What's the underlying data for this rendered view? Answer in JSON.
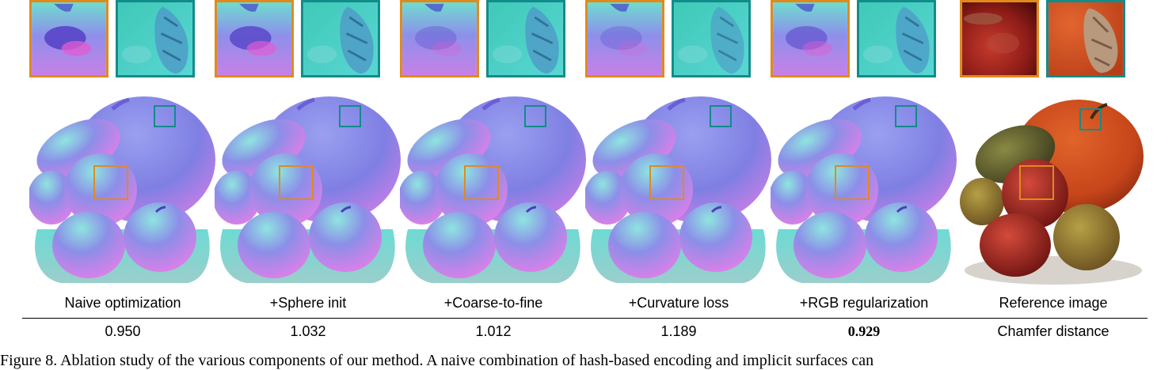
{
  "figure": {
    "columns": [
      {
        "label": "Naive optimization",
        "value": "0.950",
        "bold": false,
        "kind": "normal"
      },
      {
        "label": "+Sphere init",
        "value": "1.032",
        "bold": false,
        "kind": "normal"
      },
      {
        "label": "+Coarse-to-fine",
        "value": "1.012",
        "bold": false,
        "kind": "normal"
      },
      {
        "label": "+Curvature loss",
        "value": "1.189",
        "bold": false,
        "kind": "normal"
      },
      {
        "label": "+RGB regularization",
        "value": "0.929",
        "bold": true,
        "kind": "normal"
      },
      {
        "label": "Reference image",
        "value": "Chamfer distance",
        "bold": false,
        "kind": "rgb"
      }
    ],
    "caption": "Figure 8. Ablation study of the various components of our method. A naive combination of hash-based encoding and implicit surfaces can"
  },
  "colors": {
    "inset_orange": "#e08a1e",
    "inset_teal": "#128c8a",
    "normal_pink": "#d77ee8",
    "normal_blue": "#7f7fe3",
    "normal_teal": "#5dd6cf",
    "pumpkin_orange": "#d1531f",
    "apple_red": "#9e1d17"
  }
}
